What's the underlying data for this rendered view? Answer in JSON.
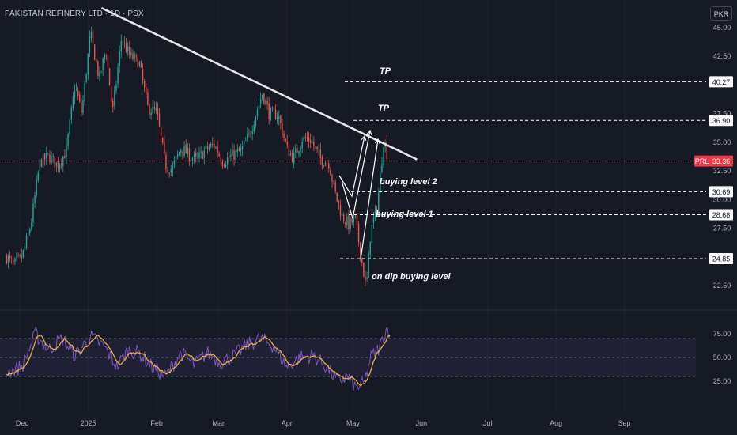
{
  "header": {
    "title": "PAKISTAN REFINERY LTD · 1D · PSX",
    "currency": "PKR"
  },
  "colors": {
    "up": "#26a69a",
    "down": "#ef5350",
    "rsi": "#7e57c2",
    "rsi_ma": "#f5b93f",
    "price_line": "#f23645",
    "background": "#161a25"
  },
  "chart_data": {
    "type": "candlestick",
    "price_axis": {
      "range": [
        21.2,
        47.4
      ],
      "ticks": [
        "45.00",
        "42.50",
        "37.50",
        "35.00",
        "32.50",
        "30.00",
        "27.50",
        "22.50"
      ]
    },
    "time_axis": {
      "labels": [
        "Dec",
        "2025",
        "Feb",
        "Mar",
        "Apr",
        "May",
        "Jun",
        "Jul",
        "Aug",
        "Sep"
      ]
    },
    "price_path": [
      {
        "date": "2024-11-25",
        "price": 25.0
      },
      {
        "date": "2024-11-28",
        "price": 24.3
      },
      {
        "date": "2024-12-02",
        "price": 25.0
      },
      {
        "date": "2024-12-06",
        "price": 27.8
      },
      {
        "date": "2024-12-10",
        "price": 33.2
      },
      {
        "date": "2024-12-14",
        "price": 33.8
      },
      {
        "date": "2024-12-18",
        "price": 33.0
      },
      {
        "date": "2024-12-22",
        "price": 34.2
      },
      {
        "date": "2024-12-26",
        "price": 40.0
      },
      {
        "date": "2024-12-29",
        "price": 37.5
      },
      {
        "date": "2025-01-02",
        "price": 44.5
      },
      {
        "date": "2025-01-06",
        "price": 40.5
      },
      {
        "date": "2025-01-09",
        "price": 43.2
      },
      {
        "date": "2025-01-12",
        "price": 37.5
      },
      {
        "date": "2025-01-16",
        "price": 44.0
      },
      {
        "date": "2025-01-20",
        "price": 42.5
      },
      {
        "date": "2025-01-24",
        "price": 42.0
      },
      {
        "date": "2025-01-28",
        "price": 38.0
      },
      {
        "date": "2025-02-01",
        "price": 37.6
      },
      {
        "date": "2025-02-05",
        "price": 33.0
      },
      {
        "date": "2025-02-08",
        "price": 32.6
      },
      {
        "date": "2025-02-12",
        "price": 34.5
      },
      {
        "date": "2025-02-15",
        "price": 34.0
      },
      {
        "date": "2025-02-19",
        "price": 33.4
      },
      {
        "date": "2025-02-23",
        "price": 34.3
      },
      {
        "date": "2025-02-27",
        "price": 34.8
      },
      {
        "date": "2025-03-03",
        "price": 33.3
      },
      {
        "date": "2025-03-07",
        "price": 33.8
      },
      {
        "date": "2025-03-11",
        "price": 34.2
      },
      {
        "date": "2025-03-15",
        "price": 35.6
      },
      {
        "date": "2025-03-18",
        "price": 37.5
      },
      {
        "date": "2025-03-21",
        "price": 39.3
      },
      {
        "date": "2025-03-24",
        "price": 37.5
      },
      {
        "date": "2025-03-28",
        "price": 37.4
      },
      {
        "date": "2025-04-01",
        "price": 34.5
      },
      {
        "date": "2025-04-04",
        "price": 33.6
      },
      {
        "date": "2025-04-08",
        "price": 35.3
      },
      {
        "date": "2025-04-12",
        "price": 35.2
      },
      {
        "date": "2025-04-16",
        "price": 33.6
      },
      {
        "date": "2025-04-20",
        "price": 33.2
      },
      {
        "date": "2025-04-23",
        "price": 30.5
      },
      {
        "date": "2025-04-26",
        "price": 28.6
      },
      {
        "date": "2025-04-29",
        "price": 27.8
      },
      {
        "date": "2025-05-02",
        "price": 28.3
      },
      {
        "date": "2025-05-05",
        "price": 24.6
      },
      {
        "date": "2025-05-07",
        "price": 22.2
      },
      {
        "date": "2025-05-09",
        "price": 27.2
      },
      {
        "date": "2025-05-12",
        "price": 29.4
      },
      {
        "date": "2025-05-15",
        "price": 35.4
      },
      {
        "date": "2025-05-17",
        "price": 33.4
      }
    ],
    "current_price": {
      "symbol": "PRL",
      "value": "33.36"
    },
    "levels": [
      {
        "value": 40.27,
        "label": "40.27",
        "annotation": "TP"
      },
      {
        "value": 36.9,
        "label": "36.90",
        "annotation": "TP"
      },
      {
        "value": 30.69,
        "label": "30.69",
        "annotation": "buying level 2"
      },
      {
        "value": 28.68,
        "label": "28.68",
        "annotation": "buying level 1"
      },
      {
        "value": 24.85,
        "label": "24.85",
        "annotation": "on dip buying level"
      }
    ],
    "trendline": {
      "from": {
        "date": "2025-01-07",
        "price": 46.7
      },
      "to": {
        "date": "2025-05-30",
        "price": 33.5
      }
    },
    "rsi": {
      "range": [
        0,
        100
      ],
      "ticks": [
        "75.00",
        "50.00",
        "25.00"
      ],
      "band": [
        30,
        70
      ],
      "path": [
        {
          "date": "2024-11-25",
          "value": 35
        },
        {
          "date": "2024-12-02",
          "value": 40
        },
        {
          "date": "2024-12-08",
          "value": 75
        },
        {
          "date": "2024-12-14",
          "value": 58
        },
        {
          "date": "2024-12-20",
          "value": 70
        },
        {
          "date": "2024-12-26",
          "value": 52
        },
        {
          "date": "2025-01-02",
          "value": 72
        },
        {
          "date": "2025-01-08",
          "value": 62
        },
        {
          "date": "2025-01-14",
          "value": 40
        },
        {
          "date": "2025-01-19",
          "value": 58
        },
        {
          "date": "2025-01-24",
          "value": 55
        },
        {
          "date": "2025-01-30",
          "value": 40
        },
        {
          "date": "2025-02-05",
          "value": 30
        },
        {
          "date": "2025-02-12",
          "value": 55
        },
        {
          "date": "2025-02-18",
          "value": 42
        },
        {
          "date": "2025-02-24",
          "value": 55
        },
        {
          "date": "2025-03-02",
          "value": 45
        },
        {
          "date": "2025-03-08",
          "value": 52
        },
        {
          "date": "2025-03-14",
          "value": 63
        },
        {
          "date": "2025-03-20",
          "value": 70
        },
        {
          "date": "2025-03-26",
          "value": 62
        },
        {
          "date": "2025-04-01",
          "value": 40
        },
        {
          "date": "2025-04-07",
          "value": 50
        },
        {
          "date": "2025-04-13",
          "value": 52
        },
        {
          "date": "2025-04-19",
          "value": 40
        },
        {
          "date": "2025-04-24",
          "value": 25
        },
        {
          "date": "2025-04-29",
          "value": 30
        },
        {
          "date": "2025-05-02",
          "value": 18
        },
        {
          "date": "2025-05-06",
          "value": 22
        },
        {
          "date": "2025-05-09",
          "value": 50
        },
        {
          "date": "2025-05-13",
          "value": 60
        },
        {
          "date": "2025-05-16",
          "value": 80
        },
        {
          "date": "2025-05-18",
          "value": 78
        }
      ]
    }
  }
}
